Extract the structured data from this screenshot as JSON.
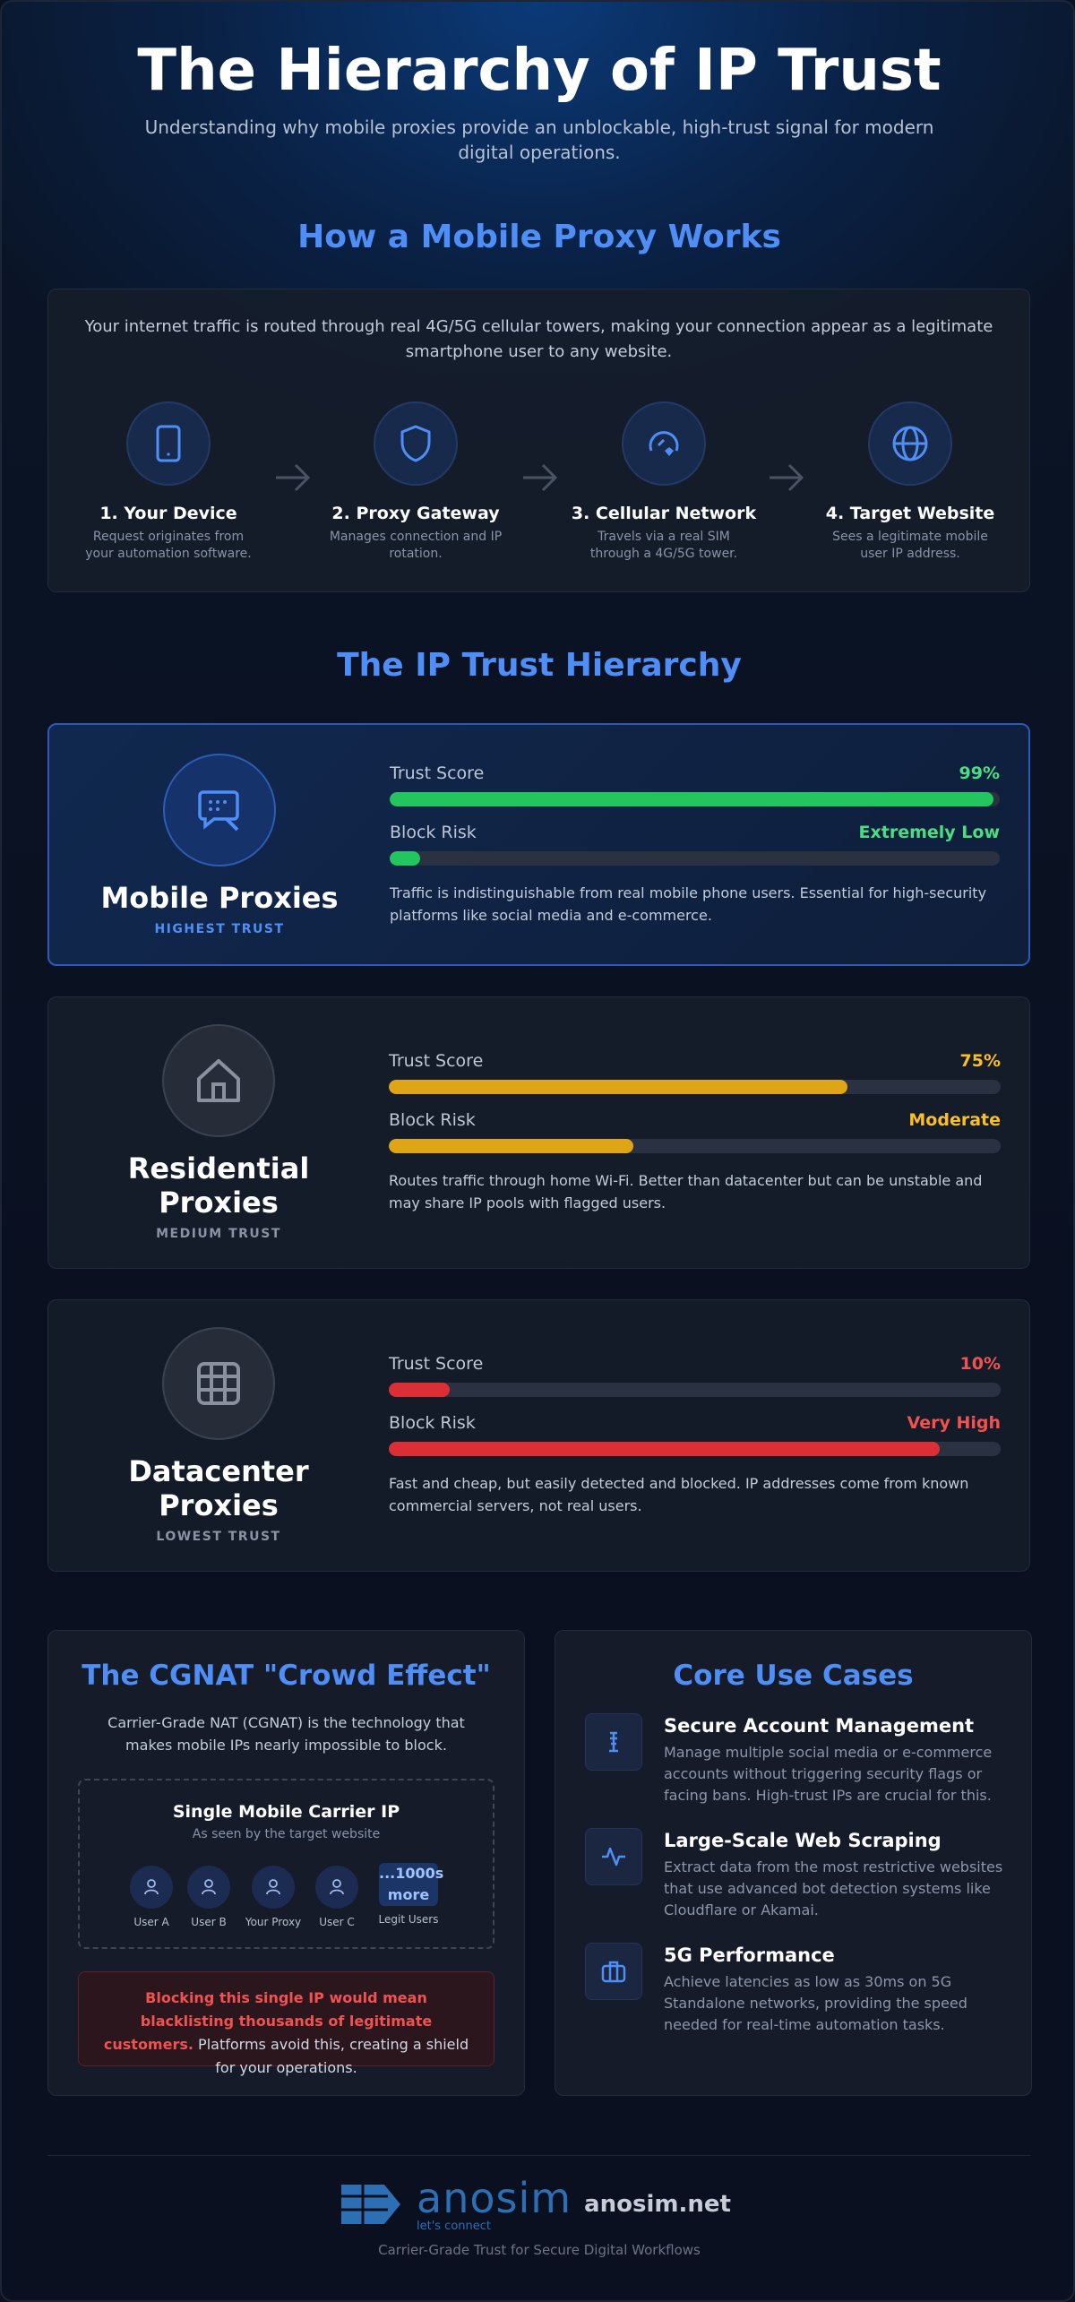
{
  "header": {
    "title": "The Hierarchy of IP Trust",
    "subtitle": "Understanding why mobile proxies provide an unblockable, high-trust signal for modern digital operations."
  },
  "how_it_works": {
    "title": "How a Mobile Proxy Works",
    "intro": "Your internet traffic is routed through real 4G/5G cellular towers, making your connection appear as a legitimate smartphone user to any website.",
    "steps": [
      {
        "title": "1. Your Device",
        "description": "Request originates from your automation software."
      },
      {
        "title": "2. Proxy Gateway",
        "description": "Manages connection and IP rotation."
      },
      {
        "title": "3. Cellular Network",
        "description": "Travels via a real SIM through a 4G/5G tower."
      },
      {
        "title": "4. Target Website",
        "description": "Sees a legitimate mobile user IP address."
      }
    ]
  },
  "hierarchy": {
    "title": "The IP Trust Hierarchy",
    "tiers": [
      {
        "name": "Mobile Proxies",
        "badge": "HIGHEST TRUST",
        "color": "#22c55e",
        "label_color": "#4ade80",
        "trust": {
          "label": "Trust Score",
          "value": 99,
          "value_label": "99%"
        },
        "risk": {
          "label": "Block Risk",
          "value": 5,
          "value_label": "Extremely Low"
        },
        "description": "Traffic is indistinguishable from real mobile phone users. Essential for high-security platforms like social media and e-commerce."
      },
      {
        "name": "Residential Proxies",
        "badge": "MEDIUM TRUST",
        "color": "#e0a514",
        "label_color": "#fbbf24",
        "trust": {
          "label": "Trust Score",
          "value": 75,
          "value_label": "75%"
        },
        "risk": {
          "label": "Block Risk",
          "value": 40,
          "value_label": "Moderate"
        },
        "description": "Routes traffic through home Wi-Fi. Better than datacenter but can be unstable and may share IP pools with flagged users."
      },
      {
        "name": "Datacenter Proxies",
        "badge": "LOWEST TRUST",
        "color": "#dc2f35",
        "label_color": "#f05252",
        "trust": {
          "label": "Trust Score",
          "value": 10,
          "value_label": "10%"
        },
        "risk": {
          "label": "Block Risk",
          "value": 90,
          "value_label": "Very High"
        },
        "description": "Fast and cheap, but easily detected and blocked. IP addresses come from known commercial servers, not real users."
      }
    ]
  },
  "cgnat": {
    "title": "The CGNAT \"Crowd Effect\"",
    "intro": "Carrier-Grade NAT (CGNAT) is the technology that makes mobile IPs nearly impossible to block.",
    "box_title": "Single Mobile Carrier IP",
    "box_subtitle": "As seen by the target website",
    "users": [
      "User A",
      "User B",
      "Your Proxy",
      "User C"
    ],
    "more": "...1000s more",
    "more_label": "Legit Users",
    "warning_bold": "Blocking this single IP would mean blacklisting thousands of legitimate customers.",
    "warning_rest": "Platforms avoid this, creating a shield for your operations."
  },
  "use_cases": {
    "title": "Core Use Cases",
    "items": [
      {
        "title": "Secure Account Management",
        "description": "Manage multiple social media or e-commerce accounts without triggering security flags or facing bans. High-trust IPs are crucial for this."
      },
      {
        "title": "Large-Scale Web Scraping",
        "description": "Extract data from the most restrictive websites that use advanced bot detection systems like Cloudflare or Akamai."
      },
      {
        "title": "5G Performance",
        "description": "Achieve latencies as low as 30ms on 5G Standalone networks, providing the speed needed for real-time automation tasks."
      }
    ]
  },
  "footer": {
    "logo": "anosim",
    "logo_tagline": "let's connect",
    "site": "anosim.net",
    "tagline": "Carrier-Grade Trust for Secure Digital Workflows"
  }
}
